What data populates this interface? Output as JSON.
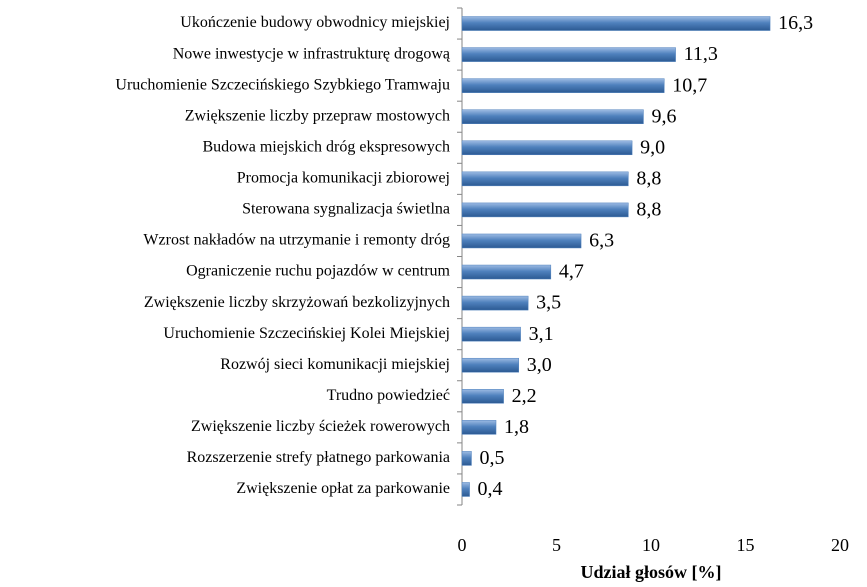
{
  "chart_data": {
    "type": "bar",
    "orientation": "horizontal",
    "x_label": "Udział głosów [%]",
    "categories": [
      "Ukończenie budowy obwodnicy miejskiej",
      "Nowe inwestycje w infrastrukturę drogową",
      "Uruchomienie Szczecińskiego Szybkiego Tramwaju",
      "Zwiększenie liczby przepraw mostowych",
      "Budowa miejskich dróg ekspresowych",
      "Promocja komunikacji zbiorowej",
      "Sterowana sygnalizacja świetlna",
      "Wzrost nakładów na utrzymanie i remonty dróg",
      "Ograniczenie ruchu pojazdów w centrum",
      "Zwiększenie liczby skrzyżowań bezkolizyjnych",
      "Uruchomienie Szczecińskiej Kolei Miejskiej",
      "Rozwój sieci komunikacji miejskiej",
      "Trudno powiedzieć",
      "Zwiększenie liczby ścieżek rowerowych",
      "Rozszerzenie strefy płatnego parkowania",
      "Zwiększenie opłat za parkowanie"
    ],
    "values": [
      16.3,
      11.3,
      10.7,
      9.6,
      9.0,
      8.8,
      8.8,
      6.3,
      4.7,
      3.5,
      3.1,
      3.0,
      2.2,
      1.8,
      0.5,
      0.4
    ],
    "value_labels": [
      "16,3",
      "11,3",
      "10,7",
      "9,6",
      "9,0",
      "8,8",
      "8,8",
      "6,3",
      "4,7",
      "3,5",
      "3,1",
      "3,0",
      "2,2",
      "1,8",
      "0,5",
      "0,4"
    ],
    "color": "#4f81bd",
    "xlim": [
      0,
      20
    ],
    "xticks": [
      0,
      5,
      10,
      15,
      20
    ],
    "grid": false
  }
}
